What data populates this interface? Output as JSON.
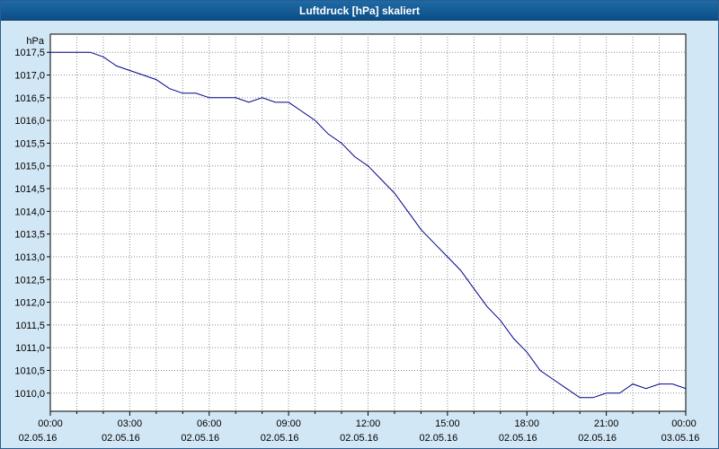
{
  "window": {
    "title": "Luftdruck [hPa] skaliert"
  },
  "colors": {
    "title_bar": "#0d4e86",
    "background": "#d2e7f5",
    "plot_background": "#ffffff",
    "grid": "#8c8c8c",
    "line": "#00008b"
  },
  "chart_data": {
    "type": "line",
    "title": "Luftdruck [hPa] skaliert",
    "ylabel": "hPa",
    "xlabel": "",
    "grid": true,
    "legend": "none",
    "xlim": [
      0,
      24
    ],
    "ylim": [
      1009.6,
      1017.9
    ],
    "x_major_tick_hours": [
      0,
      3,
      6,
      9,
      12,
      15,
      18,
      21,
      24
    ],
    "x_tick_times": [
      "00:00",
      "03:00",
      "06:00",
      "09:00",
      "12:00",
      "15:00",
      "18:00",
      "21:00",
      "00:00"
    ],
    "x_tick_dates": [
      "02.05.16",
      "02.05.16",
      "02.05.16",
      "02.05.16",
      "02.05.16",
      "02.05.16",
      "02.05.16",
      "02.05.16",
      "03.05.16"
    ],
    "x_minor_tick_step_hours": 1,
    "y_ticks": [
      1017.5,
      1017.0,
      1016.5,
      1016.0,
      1015.5,
      1015.0,
      1014.5,
      1014.0,
      1013.5,
      1013.0,
      1012.5,
      1012.0,
      1011.5,
      1011.0,
      1010.5,
      1010.0
    ],
    "y_tick_labels": [
      "1017,5",
      "1017,0",
      "1016,5",
      "1016,0",
      "1015,5",
      "1015,0",
      "1014,5",
      "1014,0",
      "1013,5",
      "1013,0",
      "1012,5",
      "1012,0",
      "1011,5",
      "1011,0",
      "1010,5",
      "1010,0"
    ],
    "series": [
      {
        "name": "Luftdruck",
        "color": "#00008b",
        "x": [
          0,
          0.5,
          1,
          1.5,
          2,
          2.5,
          3,
          3.5,
          4,
          4.5,
          5,
          5.5,
          6,
          6.5,
          7,
          7.5,
          8,
          8.5,
          9,
          9.5,
          10,
          10.5,
          11,
          11.5,
          12,
          12.5,
          13,
          13.5,
          14,
          14.5,
          15,
          15.5,
          16,
          16.5,
          17,
          17.5,
          18,
          18.5,
          19,
          19.5,
          20,
          20.5,
          21,
          21.5,
          22,
          22.5,
          23,
          23.5,
          24
        ],
        "values": [
          1017.5,
          1017.5,
          1017.5,
          1017.5,
          1017.4,
          1017.2,
          1017.1,
          1017.0,
          1016.9,
          1016.7,
          1016.6,
          1016.6,
          1016.5,
          1016.5,
          1016.5,
          1016.4,
          1016.5,
          1016.4,
          1016.4,
          1016.2,
          1016.0,
          1015.7,
          1015.5,
          1015.2,
          1015.0,
          1014.7,
          1014.4,
          1014.0,
          1013.6,
          1013.3,
          1013.0,
          1012.7,
          1012.3,
          1011.9,
          1011.6,
          1011.2,
          1010.9,
          1010.5,
          1010.3,
          1010.1,
          1009.9,
          1009.9,
          1010.0,
          1010.0,
          1010.2,
          1010.1,
          1010.2,
          1010.2,
          1010.1
        ]
      }
    ]
  }
}
